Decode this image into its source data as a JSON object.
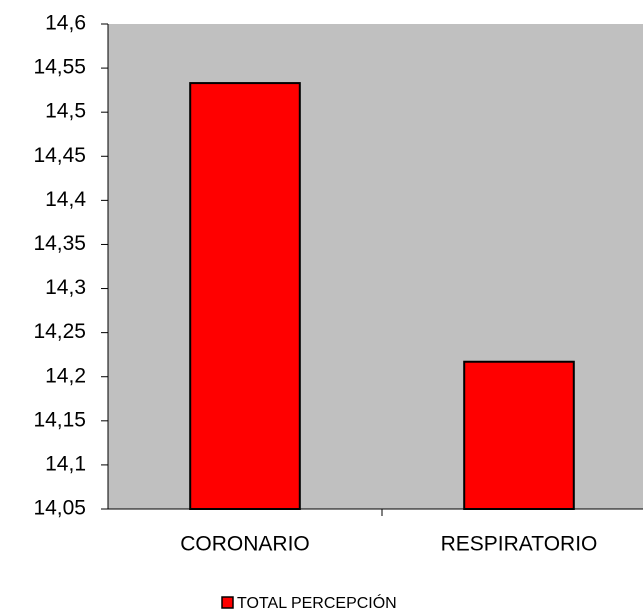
{
  "chart_data": {
    "type": "bar",
    "categories": [
      "CORONARIO",
      "RESPIRATORIO"
    ],
    "series": [
      {
        "name": "TOTAL PERCEPCIÓN",
        "color": "#ff0000",
        "values": [
          14.533,
          14.217
        ]
      }
    ],
    "ylim": [
      14.05,
      14.6
    ],
    "yticks": [
      {
        "value": 14.05,
        "label": "14,05"
      },
      {
        "value": 14.1,
        "label": "14,1"
      },
      {
        "value": 14.15,
        "label": "14,15"
      },
      {
        "value": 14.2,
        "label": "14,2"
      },
      {
        "value": 14.25,
        "label": "14,25"
      },
      {
        "value": 14.3,
        "label": "14,3"
      },
      {
        "value": 14.35,
        "label": "14,35"
      },
      {
        "value": 14.4,
        "label": "14,4"
      },
      {
        "value": 14.45,
        "label": "14,45"
      },
      {
        "value": 14.5,
        "label": "14,5"
      },
      {
        "value": 14.55,
        "label": "14,55"
      },
      {
        "value": 14.6,
        "label": "14,6"
      }
    ],
    "plot_background": "#c0c0c0",
    "legend": "bottom"
  }
}
